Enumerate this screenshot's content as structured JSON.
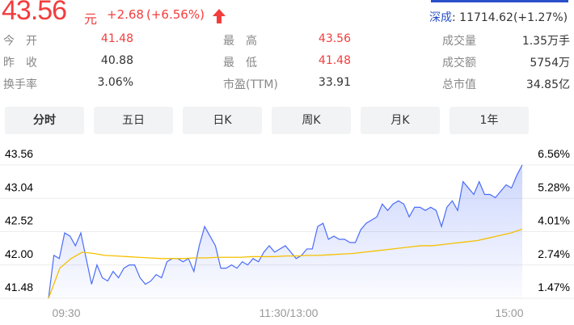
{
  "quote": {
    "price": "43.56",
    "unit": "元",
    "change": "+2.68",
    "change_pct": "(+6.56%)",
    "direction": "up",
    "up_color": "#f23d3d"
  },
  "index": {
    "name": "深成",
    "value": ": 11714.62(+1.27%)"
  },
  "stats": [
    {
      "label": "今　开",
      "value": "41.48",
      "color": "red"
    },
    {
      "label": "最　高",
      "value": "43.56",
      "color": "red"
    },
    {
      "label": "成交量",
      "value": "1.35万手"
    },
    {
      "label": "昨　收",
      "value": "40.88"
    },
    {
      "label": "最　低",
      "value": "41.48",
      "color": "red"
    },
    {
      "label": "成交额",
      "value": "5754万"
    },
    {
      "label": "换手率",
      "value": "3.06%"
    },
    {
      "label": "市盈(TTM)",
      "value": "33.91"
    },
    {
      "label": "总市值",
      "value": "34.85亿"
    }
  ],
  "tabs": [
    {
      "label": "分时",
      "active": true
    },
    {
      "label": "五日"
    },
    {
      "label": "日K"
    },
    {
      "label": "周K"
    },
    {
      "label": "月K"
    },
    {
      "label": "1年"
    }
  ],
  "chart_data": {
    "type": "line",
    "y_ticks": [
      "43.56",
      "43.04",
      "42.52",
      "42.00",
      "41.48"
    ],
    "y2_ticks": [
      "6.56%",
      "5.28%",
      "4.01%",
      "2.74%",
      "1.47%"
    ],
    "x_ticks": [
      "09:30",
      "11:30/13:00",
      "15:00"
    ],
    "ylim": [
      41.48,
      43.56
    ],
    "colors": {
      "price": "#4a6cf7",
      "average": "#f5c000"
    },
    "price": [
      41.48,
      42.15,
      42.1,
      42.5,
      42.45,
      42.3,
      42.5,
      42.1,
      41.7,
      42.0,
      41.8,
      41.75,
      41.9,
      41.8,
      41.95,
      42.0,
      42.0,
      41.8,
      41.7,
      41.75,
      41.85,
      41.8,
      42.05,
      42.1,
      42.1,
      42.05,
      42.1,
      41.9,
      42.3,
      42.6,
      42.45,
      42.3,
      41.95,
      41.95,
      42.0,
      41.95,
      42.05,
      42.0,
      42.1,
      42.05,
      42.2,
      42.3,
      42.2,
      42.25,
      42.3,
      42.2,
      42.1,
      42.15,
      42.25,
      42.25,
      42.6,
      42.65,
      42.4,
      42.45,
      42.4,
      42.4,
      42.35,
      42.35,
      42.55,
      42.65,
      42.7,
      42.75,
      42.95,
      42.85,
      42.95,
      43.0,
      42.95,
      42.75,
      42.9,
      42.9,
      42.85,
      42.9,
      42.85,
      42.6,
      42.9,
      43.0,
      42.85,
      43.3,
      43.2,
      43.1,
      43.3,
      43.1,
      43.1,
      43.05,
      43.15,
      43.25,
      43.2,
      43.4,
      43.56
    ],
    "average": [
      41.48,
      41.95,
      42.1,
      42.2,
      42.18,
      42.15,
      42.14,
      42.13,
      42.12,
      42.11,
      42.1,
      42.1,
      42.1,
      42.11,
      42.11,
      42.12,
      42.12,
      42.12,
      42.13,
      42.13,
      42.13,
      42.14,
      42.14,
      42.15,
      42.15,
      42.16,
      42.17,
      42.18,
      42.2,
      42.22,
      42.24,
      42.26,
      42.28,
      42.3,
      42.3,
      42.32,
      42.34,
      42.36,
      42.38,
      42.42,
      42.46,
      42.5,
      42.56
    ]
  }
}
